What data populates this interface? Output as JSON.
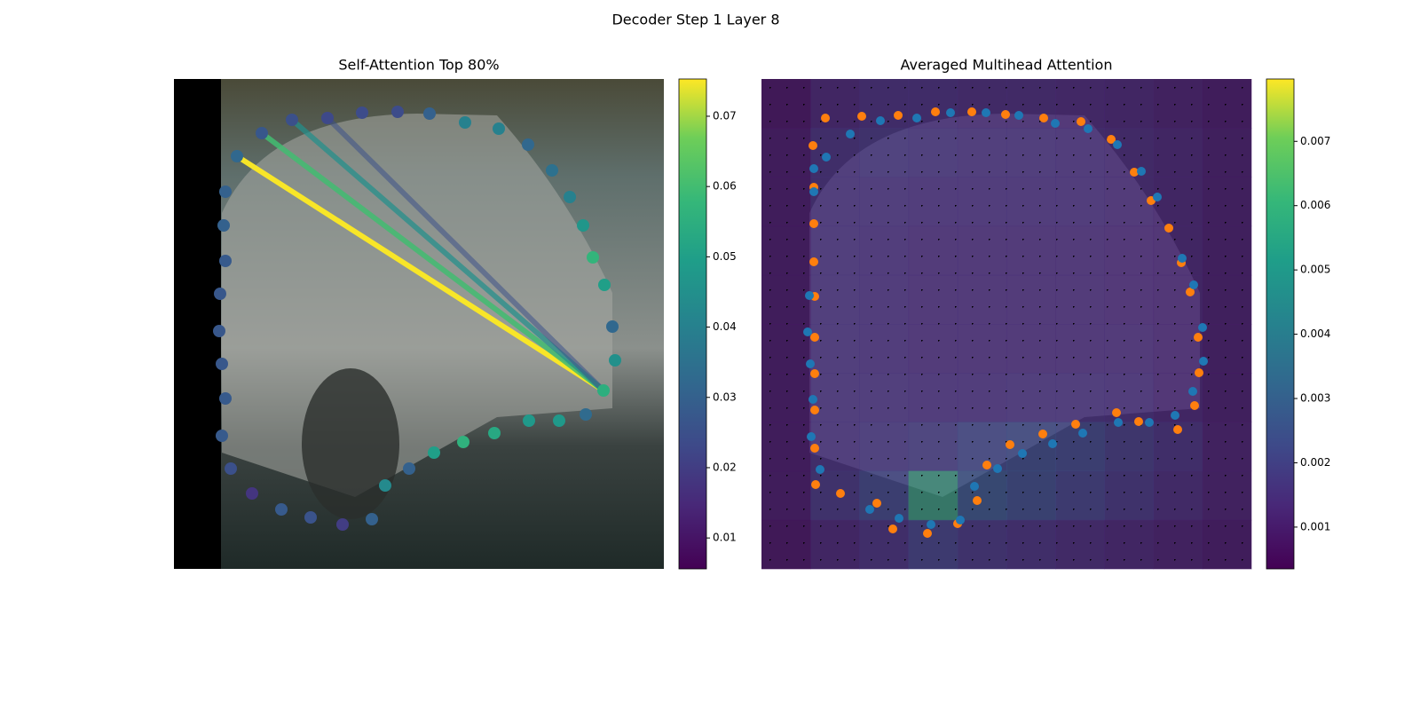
{
  "title": "Decoder Step 1 Layer 8",
  "chart_data": [
    {
      "type": "scatter",
      "title": "Self-Attention Top 80%",
      "xlim": [
        0,
        552
      ],
      "ylim": [
        552,
        0
      ],
      "x": [
        71,
        99,
        133,
        173,
        212,
        252,
        288,
        328,
        366,
        399,
        426,
        446,
        461,
        472,
        485,
        494,
        497,
        484,
        464,
        434,
        400,
        361,
        326,
        293,
        265,
        238,
        223,
        190,
        154,
        121,
        88,
        64,
        54,
        58,
        54,
        51,
        52,
        58,
        56,
        58
      ],
      "y": [
        87,
        61,
        46,
        44,
        38,
        37,
        39,
        49,
        56,
        74,
        103,
        133,
        165,
        201,
        232,
        279,
        317,
        351,
        378,
        385,
        385,
        399,
        409,
        421,
        439,
        458,
        496,
        502,
        494,
        485,
        467,
        439,
        402,
        360,
        321,
        284,
        242,
        205,
        165,
        127
      ],
      "values": [
        0.032,
        0.027,
        0.025,
        0.023,
        0.024,
        0.024,
        0.03,
        0.04,
        0.04,
        0.032,
        0.035,
        0.04,
        0.047,
        0.057,
        0.05,
        0.032,
        0.045,
        0.055,
        0.033,
        0.048,
        0.048,
        0.053,
        0.056,
        0.05,
        0.03,
        0.043,
        0.03,
        0.02,
        0.026,
        0.028,
        0.018,
        0.025,
        0.028,
        0.028,
        0.027,
        0.027,
        0.027,
        0.028,
        0.03,
        0.03
      ],
      "links": {
        "x0": 484,
        "y0": 351,
        "x": [
          71,
          99,
          133,
          173
        ],
        "y": [
          87,
          61,
          46,
          44
        ],
        "values": [
          0.075,
          0.06,
          0.045,
          0.025
        ]
      },
      "colorbar": {
        "clim": [
          0.0056,
          0.0753
        ],
        "ticks": [
          0.01,
          0.02,
          0.03,
          0.04,
          0.05,
          0.06,
          0.07
        ]
      }
    },
    {
      "type": "heatmap",
      "title": "Averaged Multihead Attention",
      "xlim": [
        0,
        552
      ],
      "ylim": [
        552,
        0
      ],
      "heatmap": [
        [
          0.0006,
          0.0012,
          0.0015,
          0.0015,
          0.0014,
          0.0014,
          0.0013,
          0.0012,
          0.001,
          0.0008
        ],
        [
          0.0008,
          0.0016,
          0.0018,
          0.0017,
          0.0016,
          0.0016,
          0.0015,
          0.0014,
          0.0012,
          0.0009
        ],
        [
          0.0008,
          0.0016,
          0.0016,
          0.0015,
          0.0015,
          0.0015,
          0.0015,
          0.0014,
          0.0012,
          0.0009
        ],
        [
          0.0008,
          0.0016,
          0.0015,
          0.0014,
          0.0014,
          0.0014,
          0.0014,
          0.0013,
          0.0012,
          0.0009
        ],
        [
          0.0008,
          0.0016,
          0.0015,
          0.0014,
          0.0014,
          0.0014,
          0.0014,
          0.0013,
          0.0012,
          0.0009
        ],
        [
          0.0008,
          0.0016,
          0.0015,
          0.0014,
          0.0014,
          0.0014,
          0.0014,
          0.0014,
          0.0012,
          0.0009
        ],
        [
          0.0008,
          0.0016,
          0.0016,
          0.0015,
          0.0015,
          0.0016,
          0.0016,
          0.0015,
          0.0012,
          0.0009
        ],
        [
          0.0008,
          0.0016,
          0.0018,
          0.002,
          0.0024,
          0.0026,
          0.0024,
          0.002,
          0.0016,
          0.001
        ],
        [
          0.0008,
          0.0018,
          0.0024,
          0.006,
          0.003,
          0.0026,
          0.0022,
          0.0018,
          0.0014,
          0.001
        ],
        [
          0.0006,
          0.0012,
          0.0016,
          0.0022,
          0.0018,
          0.0016,
          0.0014,
          0.0012,
          0.001,
          0.0008
        ]
      ],
      "series": [
        {
          "color": "#ff7f0e",
          "x": [
            72,
            113,
            154,
            196,
            237,
            275,
            318,
            360,
            394,
            420,
            439,
            459,
            473,
            483,
            492,
            493,
            488,
            469,
            425,
            400,
            354,
            317,
            280,
            254,
            243,
            221,
            187,
            148,
            130,
            89,
            61,
            60,
            60,
            60,
            60,
            60,
            59,
            59,
            59,
            58
          ],
          "y": [
            44,
            42,
            41,
            37,
            37,
            40,
            44,
            48,
            68,
            105,
            137,
            168,
            207,
            240,
            291,
            331,
            368,
            395,
            386,
            376,
            389,
            400,
            412,
            435,
            475,
            501,
            512,
            507,
            478,
            467,
            457,
            416,
            373,
            332,
            291,
            245,
            206,
            163,
            122,
            75
          ]
        },
        {
          "color": "#1f77b4",
          "x": [
            100,
            73,
            59,
            54,
            52,
            55,
            58,
            56,
            66,
            122,
            155,
            191,
            224,
            240,
            266,
            294,
            328,
            362,
            402,
            437,
            466,
            486,
            498,
            497,
            487,
            474,
            446,
            428,
            401,
            368,
            331,
            290,
            253,
            213,
            175,
            134,
            59
          ],
          "y": [
            62,
            88,
            127,
            244,
            285,
            321,
            361,
            403,
            440,
            485,
            495,
            502,
            497,
            459,
            439,
            422,
            411,
            399,
            387,
            387,
            379,
            352,
            318,
            280,
            232,
            202,
            133,
            104,
            74,
            56,
            50,
            41,
            38,
            38,
            44,
            47,
            101
          ]
        }
      ],
      "colorbar": {
        "clim": [
          0.00035,
          0.00797
        ],
        "ticks": [
          0.001,
          0.002,
          0.003,
          0.004,
          0.005,
          0.006,
          0.007
        ]
      }
    }
  ]
}
